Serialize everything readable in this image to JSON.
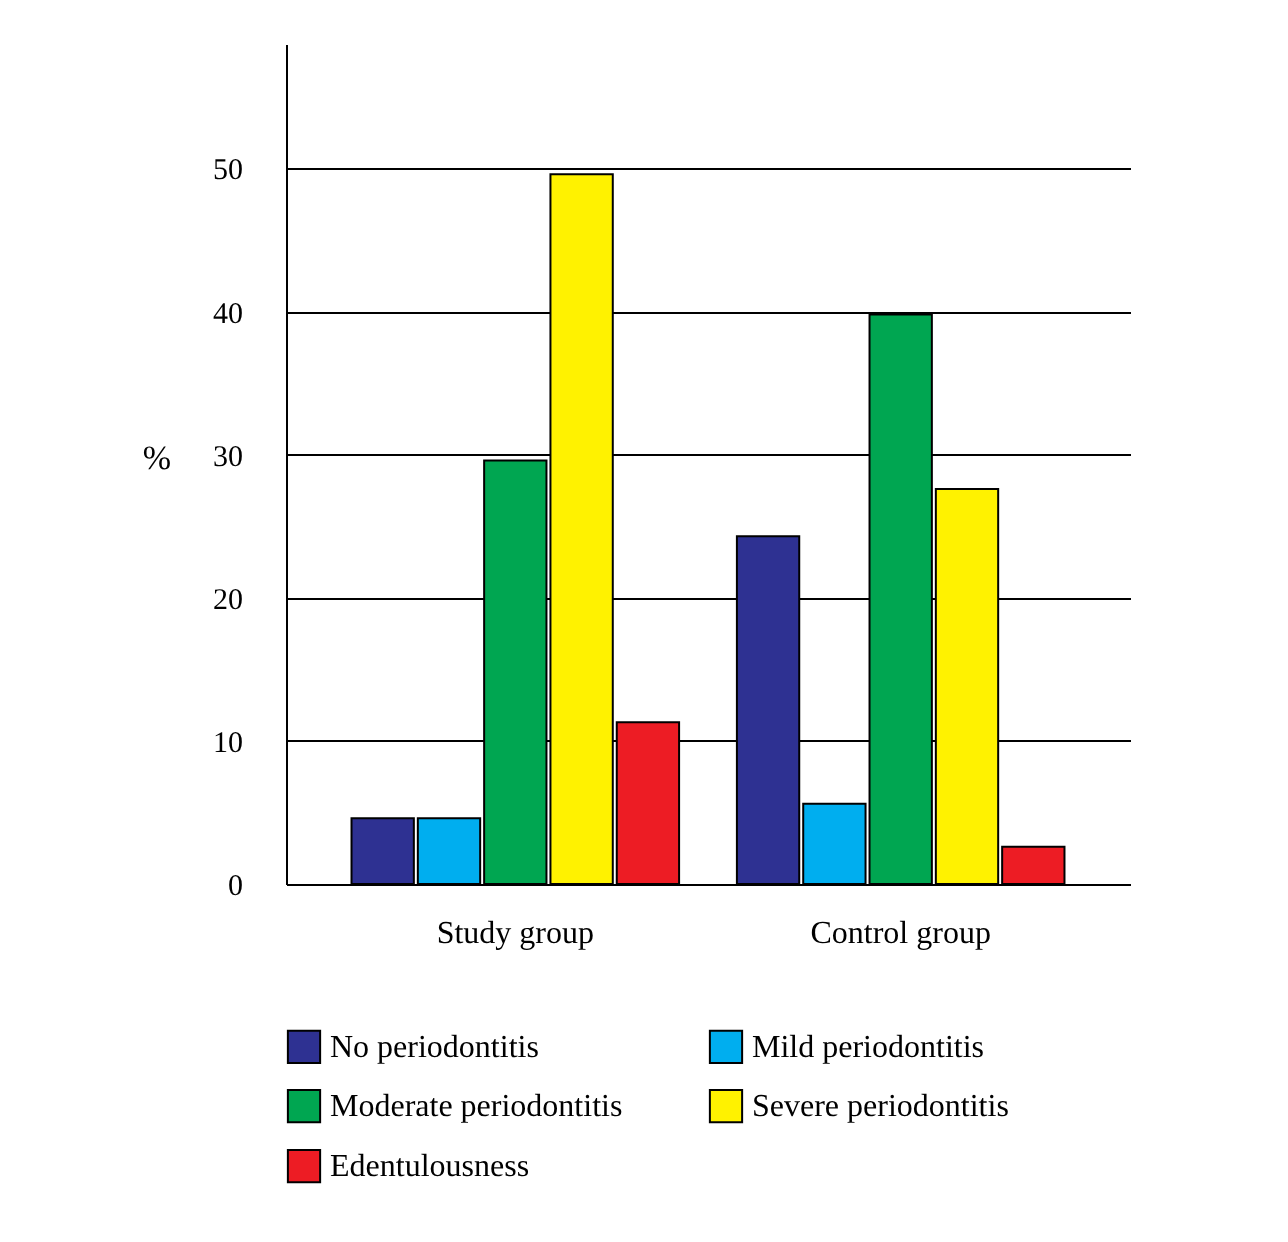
{
  "chart_data": {
    "type": "bar",
    "ylabel": "%",
    "categories": [
      "Study group",
      "Control group"
    ],
    "series": [
      {
        "name": "No periodontitis",
        "color": "#2e3192",
        "values": [
          4.6,
          24.3
        ]
      },
      {
        "name": "Mild periodontitis",
        "color": "#00aeef",
        "values": [
          4.6,
          5.6
        ]
      },
      {
        "name": "Moderate periodontitis",
        "color": "#00a651",
        "values": [
          29.6,
          39.8
        ]
      },
      {
        "name": "Severe periodontitis",
        "color": "#fff200",
        "values": [
          49.6,
          27.6
        ]
      },
      {
        "name": "Edentulousness",
        "color": "#ed1c24",
        "values": [
          11.3,
          2.6
        ]
      }
    ],
    "ylim": [
      0,
      58.7
    ],
    "yticks": [
      0,
      10,
      20,
      30,
      40,
      50
    ],
    "grid": "y",
    "legend": "bottom"
  }
}
